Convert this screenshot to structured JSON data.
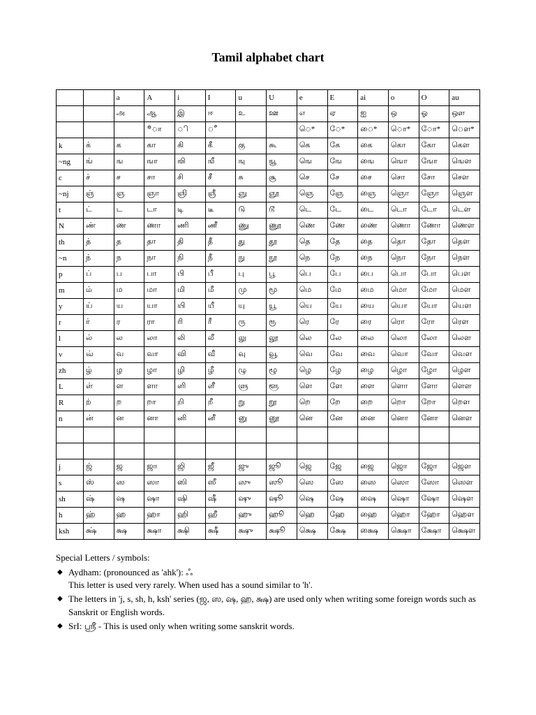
{
  "title": "Tamil alphabet chart",
  "table": {
    "type": "table",
    "background_color": "#ffffff",
    "border_color": "#000000",
    "text_color": "#000000",
    "font_family": "Times New Roman",
    "cell_fontsize": 11,
    "col_count": 14,
    "rows": [
      [
        "",
        "",
        "a",
        "A",
        "i",
        "I",
        "u",
        "U",
        "e",
        "E",
        "ai",
        "o",
        "O",
        "au"
      ],
      [
        "",
        "",
        "அ",
        "ஆ",
        "இ",
        "ஈ",
        "உ",
        "ஊ",
        "எ",
        "ஏ",
        "ஐ",
        "ஒ",
        "ஓ",
        "ஔ"
      ],
      [
        "",
        "",
        "",
        "*ா",
        "ி",
        "ீ",
        "",
        "",
        "ெ*",
        "ே*",
        "ை*",
        "ொ*",
        "ோ*",
        "ௌ*"
      ],
      [
        "k",
        "க்",
        "க",
        "கா",
        "கி",
        "கீ",
        "கு",
        "கூ",
        "கெ",
        "கே",
        "கை",
        "கொ",
        "கோ",
        "கௌ"
      ],
      [
        "~ng",
        "ங்",
        "ங",
        "ஙா",
        "ஙி",
        "ஙீ",
        "ஙு",
        "ஙூ",
        "ஙெ",
        "ஙே",
        "ஙை",
        "ஙொ",
        "ஙோ",
        "ஙௌ"
      ],
      [
        "c",
        "ச்",
        "ச",
        "சா",
        "சி",
        "சீ",
        "சு",
        "சூ",
        "செ",
        "சே",
        "சை",
        "சொ",
        "சோ",
        "சௌ"
      ],
      [
        "~nj",
        "ஞ்",
        "ஞ",
        "ஞா",
        "ஞி",
        "ஞீ",
        "ஞு",
        "ஞூ",
        "ஞெ",
        "ஞே",
        "ஞை",
        "ஞொ",
        "ஞோ",
        "ஞௌ"
      ],
      [
        "t",
        "ட்",
        "ட",
        "டா",
        "டி",
        "டீ",
        "டு",
        "டூ",
        "டெ",
        "டே",
        "டை",
        "டொ",
        "டோ",
        "டௌ"
      ],
      [
        "N",
        "ண்",
        "ண",
        "ணா",
        "ணி",
        "ணீ",
        "ணு",
        "ணூ",
        "ணெ",
        "ணே",
        "ணை",
        "ணொ",
        "ணோ",
        "ணௌ"
      ],
      [
        "th",
        "த்",
        "த",
        "தா",
        "தி",
        "தீ",
        "து",
        "தூ",
        "தெ",
        "தே",
        "தை",
        "தொ",
        "தோ",
        "தௌ"
      ],
      [
        "~n",
        "ந்",
        "ந",
        "நா",
        "நி",
        "நீ",
        "நு",
        "நூ",
        "நெ",
        "நே",
        "நை",
        "நொ",
        "நோ",
        "நௌ"
      ],
      [
        "p",
        "ப்",
        "ப",
        "பா",
        "பி",
        "பீ",
        "பு",
        "பூ",
        "பெ",
        "பே",
        "பை",
        "பொ",
        "போ",
        "பௌ"
      ],
      [
        "m",
        "ம்",
        "ம",
        "மா",
        "மி",
        "மீ",
        "மு",
        "மூ",
        "மெ",
        "மே",
        "மை",
        "மொ",
        "மோ",
        "மௌ"
      ],
      [
        "y",
        "ய்",
        "ய",
        "யா",
        "யி",
        "யீ",
        "யு",
        "யூ",
        "யெ",
        "யே",
        "யை",
        "யொ",
        "யோ",
        "யௌ"
      ],
      [
        "r",
        "ர்",
        "ர",
        "ரா",
        "ரி",
        "ரீ",
        "ரு",
        "ரூ",
        "ரெ",
        "ரே",
        "ரை",
        "ரொ",
        "ரோ",
        "ரௌ"
      ],
      [
        "l",
        "ல்",
        "ல",
        "லா",
        "லி",
        "லீ",
        "லு",
        "லூ",
        "லெ",
        "லே",
        "லை",
        "லொ",
        "லோ",
        "லௌ"
      ],
      [
        "v",
        "வ்",
        "வ",
        "வா",
        "வி",
        "வீ",
        "வு",
        "வூ",
        "வெ",
        "வே",
        "வை",
        "வொ",
        "வோ",
        "வௌ"
      ],
      [
        "zh",
        "ழ்",
        "ழ",
        "ழா",
        "ழி",
        "ழீ",
        "ழு",
        "ழூ",
        "ழெ",
        "ழே",
        "ழை",
        "ழொ",
        "ழோ",
        "ழௌ"
      ],
      [
        "L",
        "ள்",
        "ள",
        "ளா",
        "ளி",
        "ளீ",
        "ளு",
        "ளூ",
        "ளெ",
        "ளே",
        "ளை",
        "ளொ",
        "ளோ",
        "ளௌ"
      ],
      [
        "R",
        "ற்",
        "ற",
        "றா",
        "றி",
        "றீ",
        "று",
        "றூ",
        "றெ",
        "றே",
        "றை",
        "றொ",
        "றோ",
        "றௌ"
      ],
      [
        "n",
        "ன்",
        "ன",
        "னா",
        "னி",
        "னீ",
        "னு",
        "னூ",
        "னெ",
        "னே",
        "னை",
        "னொ",
        "னோ",
        "னௌ"
      ],
      [
        "",
        "",
        "",
        "",
        "",
        "",
        "",
        "",
        "",
        "",
        "",
        "",
        "",
        ""
      ],
      [
        "",
        "",
        "",
        "",
        "",
        "",
        "",
        "",
        "",
        "",
        "",
        "",
        "",
        ""
      ],
      [
        "j",
        "ஜ்",
        "ஜ",
        "ஜா",
        "ஜி",
        "ஜீ",
        "ஜு",
        "ஜூ",
        "ஜெ",
        "ஜே",
        "ஜை",
        "ஜொ",
        "ஜோ",
        "ஜௌ"
      ],
      [
        "s",
        "ஸ்",
        "ஸ",
        "ஸா",
        "ஸி",
        "ஸீ",
        "ஸு",
        "ஸூ",
        "ஸெ",
        "ஸே",
        "ஸை",
        "ஸொ",
        "ஸோ",
        "ஸௌ"
      ],
      [
        "sh",
        "ஷ்",
        "ஷ",
        "ஷா",
        "ஷி",
        "ஷீ",
        "ஷு",
        "ஷூ",
        "ஷெ",
        "ஷே",
        "ஷை",
        "ஷொ",
        "ஷோ",
        "ஷௌ"
      ],
      [
        "h",
        "ஹ்",
        "ஹ",
        "ஹா",
        "ஹி",
        "ஹீ",
        "ஹு",
        "ஹூ",
        "ஹெ",
        "ஹே",
        "ஹை",
        "ஹொ",
        "ஹோ",
        "ஹௌ"
      ],
      [
        "ksh",
        "க்ஷ்",
        "க்ஷ",
        "க்ஷா",
        "க்ஷி",
        "க்ஷீ",
        "க்ஷு",
        "க்ஷூ",
        "க்ஷெ",
        "க்ஷே",
        "க்ஷை",
        "க்ஷொ",
        "க்ஷோ",
        "க்ஷௌ"
      ]
    ]
  },
  "notes": {
    "heading": "Special Letters / symbols:",
    "items": [
      "Aydham: (pronounced as 'ahk'): ஃ\nThis letter is used very rarely. When used has a sound similar to 'h'.",
      "The letters in 'j, s, sh, h, ksh' series (ஜ, ஸ, ஷ, ஹ, க்ஷ) are used only when writing some foreign words such as Sanskrit or English words.",
      "SrI: ஸ்ரீ - This is used only when writing some sanskrit words."
    ]
  }
}
